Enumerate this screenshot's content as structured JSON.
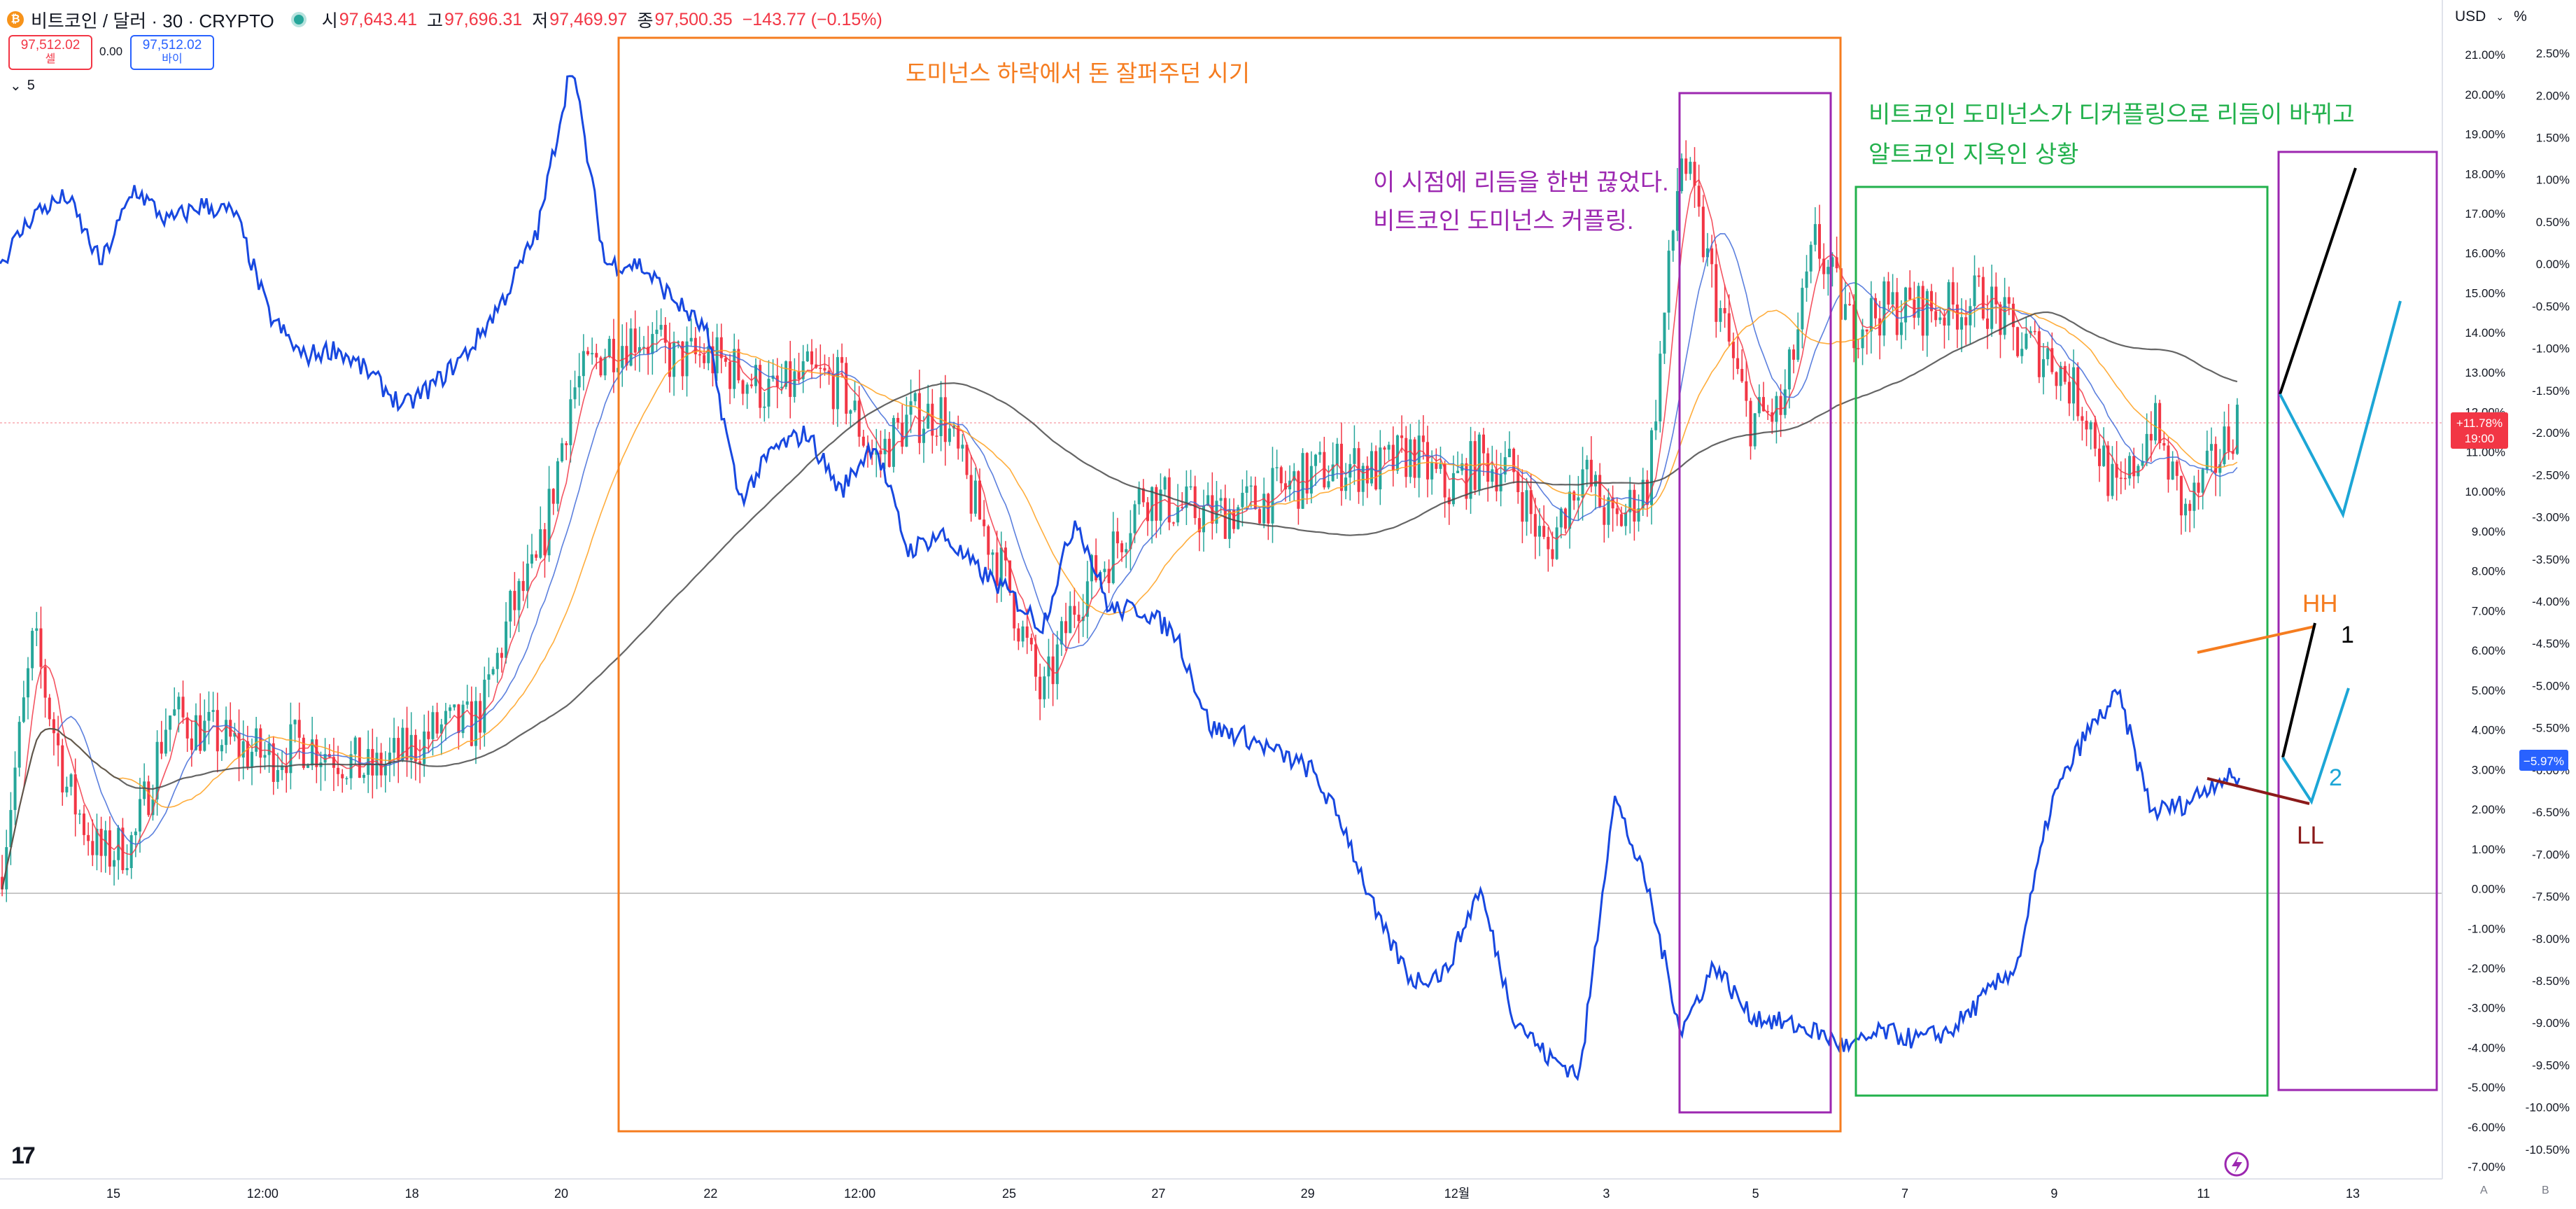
{
  "header": {
    "title": "비트코인 / 달러 · 30 · CRYPTO",
    "open_label": "시",
    "open": "97,643.41",
    "high_label": "고",
    "high": "97,696.31",
    "low_label": "저",
    "low": "97,469.97",
    "close_label": "종",
    "close": "97,500.35",
    "change": "−143.77 (−0.15%)"
  },
  "trade": {
    "sell_price": "97,512.02",
    "sell_label": "셀",
    "spread": "0.00",
    "buy_price": "97,512.02",
    "buy_label": "바이"
  },
  "indicator_toggle": "5",
  "currency": {
    "label": "USD",
    "unit": "%"
  },
  "annotations": {
    "orange_box": "도미넌스 하락에서 돈 잘퍼주던 시기",
    "purple_box_line1": "이 시점에 리듬을 한번 끊었다.",
    "purple_box_line2": "비트코인 도미넌스 커플링.",
    "green_box_line1": "비트코인 도미넌스가 디커플링으로 리듬이 바뀌고",
    "green_box_line2": "알트코인 지옥인 상황",
    "hh": "HH",
    "ll": "LL",
    "one": "1",
    "two": "2"
  },
  "badges": {
    "btc_pct": "+11.78%",
    "btc_time": "19:00",
    "dom_pct": "−5.97%"
  },
  "bottom_labels": {
    "a": "A",
    "b": "B"
  },
  "colors": {
    "candle_up": "#26a69a",
    "candle_down": "#f23645",
    "dominance_line": "#1848e0",
    "ma_fast": "#f23645",
    "ma_mid": "#3f6ad8",
    "ma_slow": "#ff9f1a",
    "ma_long": "#4a4a4a",
    "orange_box": "#f57c1f",
    "purple_box": "#9c27b0",
    "green_box": "#22b14c"
  },
  "chart_data": {
    "type": "line",
    "title": "비트코인 / 달러 · 30 · CRYPTO",
    "x_tick_labels": [
      "15",
      "12:00",
      "18",
      "20",
      "22",
      "12:00",
      "25",
      "27",
      "29",
      "12월",
      "3",
      "5",
      "7",
      "9",
      "11",
      "13"
    ],
    "right_axis_1_ticks": [
      "21.00%",
      "20.00%",
      "19.00%",
      "18.00%",
      "17.00%",
      "16.00%",
      "15.00%",
      "14.00%",
      "13.00%",
      "12.00%",
      "11.00%",
      "10.00%",
      "9.00%",
      "8.00%",
      "7.00%",
      "6.00%",
      "5.00%",
      "4.00%",
      "3.00%",
      "2.00%",
      "1.00%",
      "0.00%",
      "-1.00%",
      "-2.00%",
      "-3.00%",
      "-4.00%",
      "-5.00%",
      "-6.00%",
      "-7.00%"
    ],
    "right_axis_2_ticks": [
      "2.50%",
      "2.00%",
      "1.50%",
      "1.00%",
      "0.50%",
      "0.00%",
      "-0.50%",
      "-1.00%",
      "-1.50%",
      "-2.00%",
      "-2.50%",
      "-3.00%",
      "-3.50%",
      "-4.00%",
      "-4.50%",
      "-5.00%",
      "-5.50%",
      "-6.00%",
      "-6.50%",
      "-7.00%",
      "-7.50%",
      "-8.00%",
      "-8.50%",
      "-9.00%",
      "-9.50%",
      "-10.00%",
      "-10.50%"
    ],
    "ylim_btc_pct": [
      -7.2,
      21.6
    ],
    "ylim_dominance_pct": [
      -10.7,
      2.6
    ],
    "series": [
      {
        "key": "btc",
        "x": [
          0,
          0.5,
          1,
          1.5,
          2,
          2.5,
          3,
          3.5,
          4,
          4.5,
          5,
          5.5,
          6,
          6.5,
          7,
          7.2,
          7.6,
          8,
          8.5,
          9,
          9.5,
          10,
          10.5,
          11,
          11.5,
          12,
          12.5,
          13,
          13.5,
          14,
          14.5,
          15,
          15.5,
          16,
          16.5,
          17,
          17.5,
          18,
          18.5,
          19,
          19.5,
          20,
          20.5,
          21,
          21.5,
          22,
          22.5,
          23,
          23.5,
          24,
          24.5,
          25,
          25.5,
          26,
          26.5,
          27,
          27.5,
          28,
          28.5,
          29,
          29.5,
          30,
          30.5,
          31,
          31.5,
          32,
          32.5,
          33,
          33.3
        ],
        "y": [
          0.3,
          6.3,
          2.5,
          0.8,
          1.2,
          4.4,
          4.0,
          3.6,
          3.3,
          3.7,
          3.4,
          2.9,
          3.4,
          4.0,
          4.1,
          4.6,
          7.0,
          8.1,
          12.5,
          13.6,
          14.0,
          13.3,
          13.4,
          13.0,
          12.4,
          12.9,
          12.7,
          10.8,
          11.8,
          12.0,
          9.6,
          7.6,
          4.7,
          7.3,
          8.4,
          10.0,
          9.6,
          9.4,
          9.6,
          10.0,
          10.4,
          10.7,
          10.5,
          11.0,
          10.0,
          10.8,
          10.5,
          8.4,
          10.6,
          9.1,
          10.2,
          18.6,
          15.0,
          11.8,
          12.0,
          16.3,
          14.2,
          14.6,
          14.6,
          14.6,
          14.9,
          13.8,
          13.4,
          12.1,
          9.7,
          11.8,
          9.4,
          10.9,
          12.0
        ]
      },
      {
        "key": "dominance",
        "x": [
          0,
          0.5,
          1,
          1.5,
          2,
          2.5,
          3,
          3.5,
          4,
          4.5,
          5,
          5.5,
          6,
          6.5,
          7,
          7.5,
          8,
          8.5,
          9,
          9.5,
          10,
          10.5,
          11,
          11.5,
          12,
          12.5,
          13,
          13.5,
          14,
          14.5,
          15,
          15.5,
          16,
          16.5,
          17,
          17.5,
          18,
          18.5,
          19,
          19.5,
          20,
          20.5,
          21,
          21.5,
          22,
          22.5,
          23,
          23.5,
          24,
          24.5,
          25,
          25.5,
          26,
          26.5,
          27,
          27.5,
          28,
          28.5,
          29,
          29.5,
          30,
          30.5,
          31,
          31.5,
          32,
          32.5,
          33,
          33.3
        ],
        "y": [
          0.0,
          0.6,
          0.8,
          0.0,
          0.9,
          0.5,
          0.7,
          0.6,
          -0.6,
          -1.1,
          -1.0,
          -1.3,
          -1.7,
          -1.4,
          -1.0,
          -0.4,
          0.4,
          2.4,
          0.0,
          0.0,
          -0.4,
          -0.8,
          -2.8,
          -2.2,
          -2.0,
          -2.7,
          -2.1,
          -3.4,
          -3.2,
          -3.6,
          -3.9,
          -4.3,
          -3.0,
          -4.1,
          -4.1,
          -4.4,
          -5.5,
          -5.6,
          -5.8,
          -6.0,
          -6.7,
          -7.8,
          -8.5,
          -8.4,
          -7.4,
          -8.9,
          -9.4,
          -9.6,
          -6.3,
          -7.4,
          -9.1,
          -8.3,
          -8.9,
          -9.0,
          -9.1,
          -9.3,
          -9.1,
          -9.2,
          -9.1,
          -8.7,
          -8.3,
          -6.4,
          -5.6,
          -5.1,
          -6.5,
          -6.4,
          -6.1,
          -6.1
        ]
      }
    ]
  }
}
